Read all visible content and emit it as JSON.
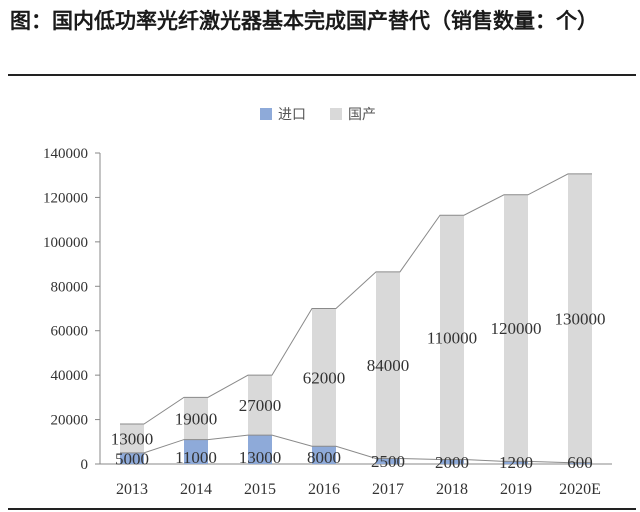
{
  "title": "图：国内低功率光纤激光器基本完成国产替代（销售数量：个）",
  "chart_data": {
    "type": "bar",
    "stacked": true,
    "categories": [
      "2013",
      "2014",
      "2015",
      "2016",
      "2017",
      "2018",
      "2019",
      "2020E"
    ],
    "series": [
      {
        "name": "进口",
        "values": [
          5000,
          11000,
          13000,
          8000,
          2500,
          2000,
          1200,
          600
        ],
        "color": "#8eaad9"
      },
      {
        "name": "国产",
        "values": [
          13000,
          19000,
          27000,
          62000,
          84000,
          110000,
          120000,
          130000
        ],
        "color": "#d9d9d9"
      }
    ],
    "data_labels": {
      "import": [
        "5000",
        "11000",
        "13000",
        "8000",
        "2500",
        "2000",
        "1200",
        "600"
      ],
      "domestic": [
        "13000",
        "19000",
        "27000",
        "62000",
        "84000",
        "110000",
        "120000",
        "130000"
      ]
    },
    "ylim": [
      0,
      140000
    ],
    "yticks": [
      "0",
      "20000",
      "40000",
      "60000",
      "80000",
      "100000",
      "120000",
      "140000"
    ],
    "legend_position": "top-center",
    "grid": false,
    "trend_lines": true
  }
}
